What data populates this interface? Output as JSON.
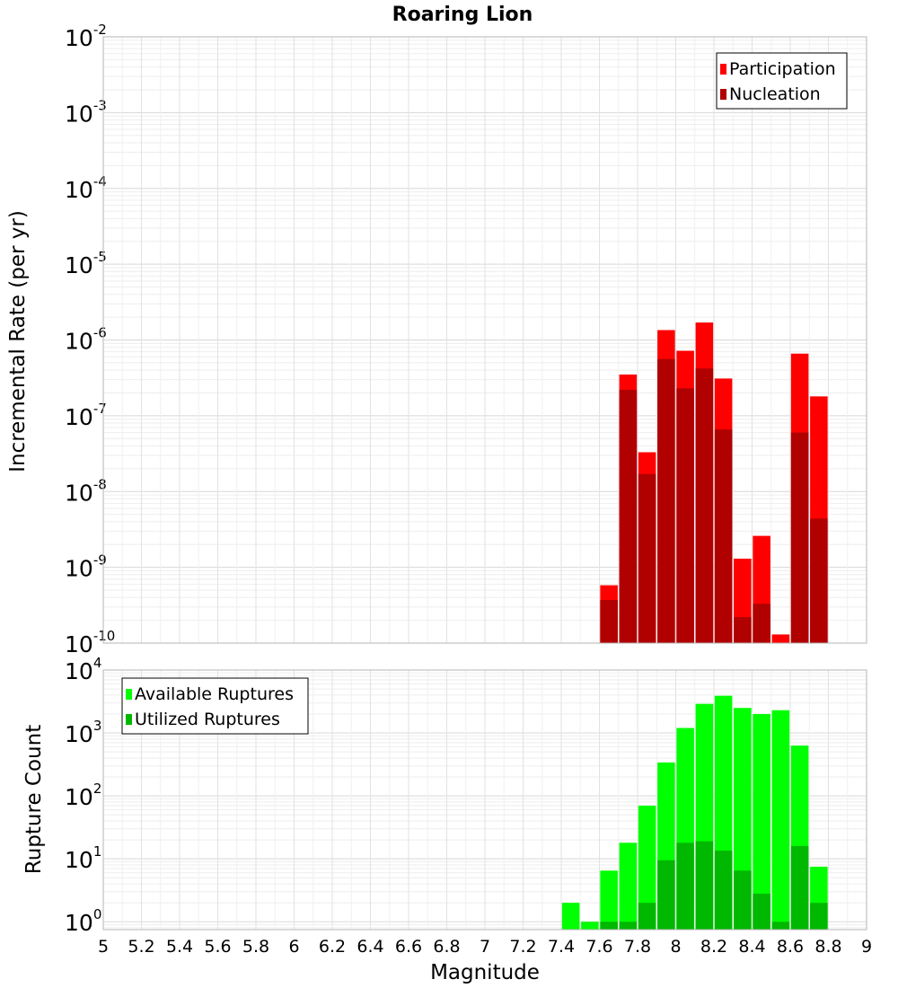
{
  "chart_data": [
    {
      "type": "bar",
      "title": "Roaring Lion",
      "xlabel": "",
      "ylabel": "Incremental Rate (per yr)",
      "yscale": "log",
      "ylim": [
        1e-10,
        0.01
      ],
      "xlim": [
        5,
        9
      ],
      "grid": true,
      "legend_position": "top-right",
      "y_ticks": [
        {
          "base": "10",
          "exp": "-10"
        },
        {
          "base": "10",
          "exp": "-9"
        },
        {
          "base": "10",
          "exp": "-8"
        },
        {
          "base": "10",
          "exp": "-7"
        },
        {
          "base": "10",
          "exp": "-6"
        },
        {
          "base": "10",
          "exp": "-5"
        },
        {
          "base": "10",
          "exp": "-4"
        },
        {
          "base": "10",
          "exp": "-3"
        },
        {
          "base": "10",
          "exp": "-2"
        }
      ],
      "x": [
        7.65,
        7.75,
        7.85,
        7.95,
        8.05,
        8.15,
        8.25,
        8.35,
        8.45,
        8.55,
        8.65,
        8.75
      ],
      "series": [
        {
          "name": "Participation",
          "color": "#ff0000",
          "values": [
            5.8e-10,
            3.5e-07,
            3.3e-08,
            1.35e-06,
            7.2e-07,
            1.7e-06,
            3.1e-07,
            1.3e-09,
            2.6e-09,
            1.3e-10,
            6.6e-07,
            1.8e-07
          ]
        },
        {
          "name": "Nucleation",
          "color": "#b00000",
          "values": [
            3.7e-10,
            2.2e-07,
            1.7e-08,
            5.6e-07,
            2.3e-07,
            4.2e-07,
            6.6e-08,
            2.2e-10,
            3.3e-10,
            null,
            6e-08,
            4.4e-09
          ]
        }
      ]
    },
    {
      "type": "bar",
      "xlabel": "Magnitude",
      "ylabel": "Rupture Count",
      "yscale": "log",
      "ylim": [
        0.75,
        10000
      ],
      "xlim": [
        5,
        9
      ],
      "grid": true,
      "legend_position": "top-left",
      "y_ticks": [
        {
          "base": "10",
          "exp": "0"
        },
        {
          "base": "10",
          "exp": "1"
        },
        {
          "base": "10",
          "exp": "2"
        },
        {
          "base": "10",
          "exp": "3"
        },
        {
          "base": "10",
          "exp": "4"
        }
      ],
      "x_ticks": [
        "5",
        "5.2",
        "5.4",
        "5.6",
        "5.8",
        "6",
        "6.2",
        "6.4",
        "6.6",
        "6.8",
        "7",
        "7.2",
        "7.4",
        "7.6",
        "7.8",
        "8",
        "8.2",
        "8.4",
        "8.6",
        "8.8",
        "9"
      ],
      "x": [
        7.45,
        7.55,
        7.65,
        7.75,
        7.85,
        7.95,
        8.05,
        8.15,
        8.25,
        8.35,
        8.45,
        8.55,
        8.65,
        8.75
      ],
      "series": [
        {
          "name": "Available Ruptures",
          "color": "#00ff00",
          "values": [
            2,
            1,
            6.5,
            18,
            70,
            340,
            1200,
            2900,
            3900,
            2500,
            2000,
            2300,
            630,
            7.5
          ]
        },
        {
          "name": "Utilized Ruptures",
          "color": "#00b800",
          "values": [
            null,
            null,
            1,
            1,
            2,
            9.5,
            18,
            19,
            13.5,
            6.5,
            2.8,
            1,
            16,
            2
          ]
        }
      ]
    }
  ]
}
